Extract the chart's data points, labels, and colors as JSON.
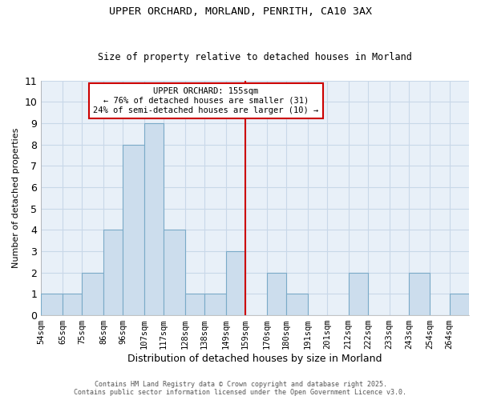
{
  "title": "UPPER ORCHARD, MORLAND, PENRITH, CA10 3AX",
  "subtitle": "Size of property relative to detached houses in Morland",
  "xlabel": "Distribution of detached houses by size in Morland",
  "ylabel": "Number of detached properties",
  "bar_edges": [
    54,
    65,
    75,
    86,
    96,
    107,
    117,
    128,
    138,
    149,
    159,
    170,
    180,
    191,
    201,
    212,
    222,
    233,
    243,
    254,
    264
  ],
  "bar_heights": [
    1,
    1,
    2,
    4,
    8,
    9,
    4,
    1,
    1,
    3,
    0,
    2,
    1,
    0,
    0,
    2,
    0,
    0,
    2,
    0,
    1
  ],
  "bar_color": "#ccdded",
  "bar_edgecolor": "#7aaac8",
  "grid_color": "#c8d8e8",
  "background_color": "#ffffff",
  "ax_background_color": "#e8f0f8",
  "reference_line_x": 159,
  "reference_line_color": "#cc0000",
  "annotation_title": "UPPER ORCHARD: 155sqm",
  "annotation_line1": "← 76% of detached houses are smaller (31)",
  "annotation_line2": "24% of semi-detached houses are larger (10) →",
  "annotation_box_color": "white",
  "annotation_box_edgecolor": "#cc0000",
  "tick_labels": [
    "54sqm",
    "65sqm",
    "75sqm",
    "86sqm",
    "96sqm",
    "107sqm",
    "117sqm",
    "128sqm",
    "138sqm",
    "149sqm",
    "159sqm",
    "170sqm",
    "180sqm",
    "191sqm",
    "201sqm",
    "212sqm",
    "222sqm",
    "233sqm",
    "243sqm",
    "254sqm",
    "264sqm"
  ],
  "ylim": [
    0,
    11
  ],
  "yticks": [
    0,
    1,
    2,
    3,
    4,
    5,
    6,
    7,
    8,
    9,
    10,
    11
  ],
  "footer_line1": "Contains HM Land Registry data © Crown copyright and database right 2025.",
  "footer_line2": "Contains public sector information licensed under the Open Government Licence v3.0."
}
